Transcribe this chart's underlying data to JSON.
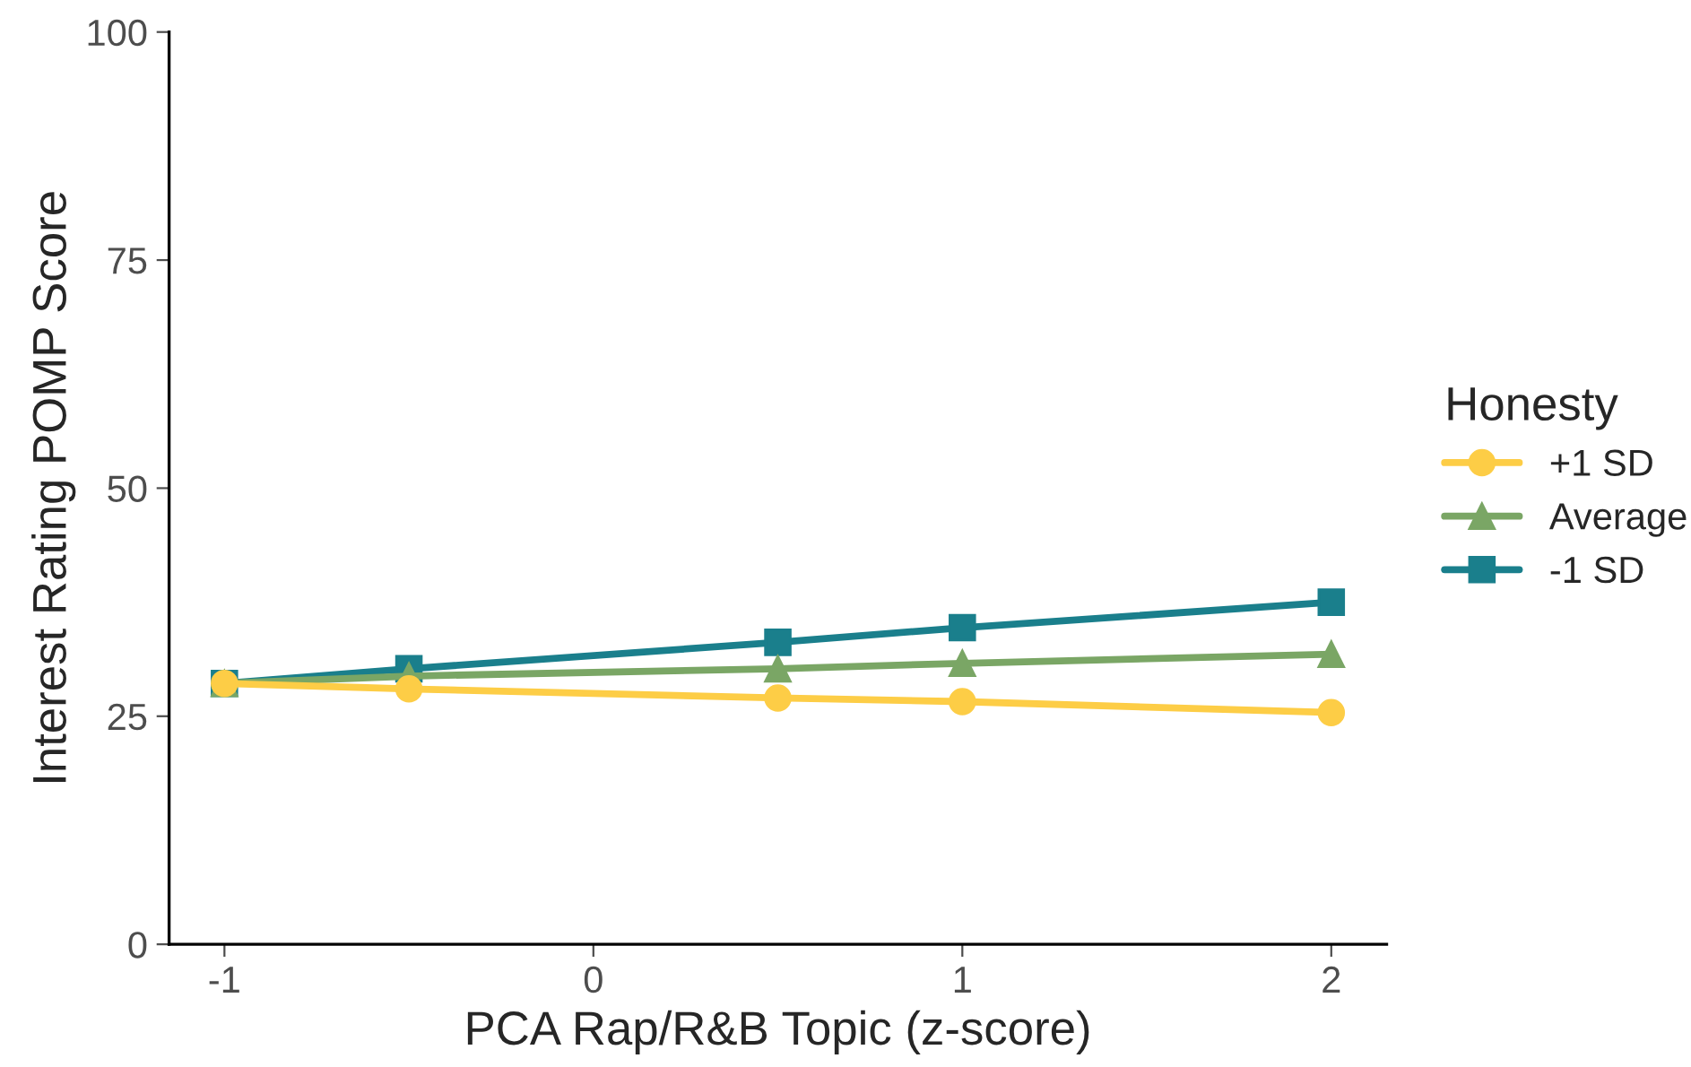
{
  "chart_data": {
    "type": "line",
    "xlabel": "PCA Rap/R&B Topic (z-score)",
    "ylabel": "Interest Rating POMP Score",
    "legend_title": "Honesty",
    "legend": "right",
    "grid": false,
    "x": [
      -1,
      -0.5,
      0.5,
      1,
      2
    ],
    "xlim": [
      -1.15,
      2.15
    ],
    "xticks": [
      -1,
      0,
      1,
      2
    ],
    "ylim": [
      0,
      100
    ],
    "yticks": [
      0,
      25,
      50,
      75,
      100
    ],
    "series": [
      {
        "name": "+1 SD",
        "color": "#fdcd46",
        "marker": "circle",
        "values": [
          28.6,
          28.0,
          27.0,
          26.6,
          25.4
        ]
      },
      {
        "name": "Average",
        "color": "#7aa665",
        "marker": "triangle",
        "values": [
          28.6,
          29.4,
          30.2,
          30.8,
          31.8
        ]
      },
      {
        "name": "-1 SD",
        "color": "#1a7f8c",
        "marker": "square",
        "values": [
          28.6,
          30.2,
          33.1,
          34.7,
          37.5
        ]
      }
    ]
  }
}
